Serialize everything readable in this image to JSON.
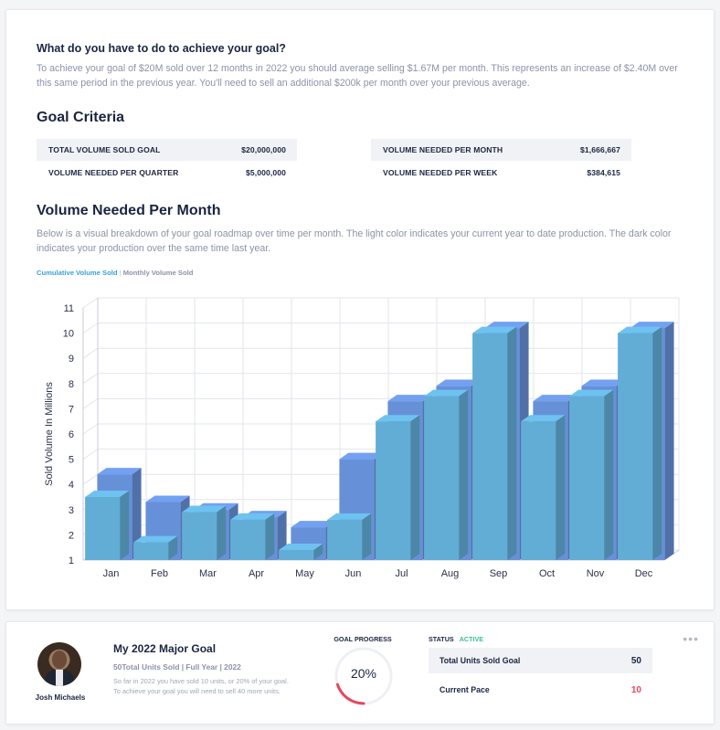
{
  "roadmap": {
    "question": "What do you have to do to achieve your goal?",
    "paragraph": "To achieve your goal of $20M sold over 12 months in 2022 you should average selling $1.67M per month.  This represents an increase of $2.40M over this same period in the previous year.  You'll need to sell an additional $200k per month over your previous average."
  },
  "criteria": {
    "title": "Goal Criteria",
    "left": [
      {
        "label": "TOTAL VOLUME SOLD GOAL",
        "value": "$20,000,000"
      },
      {
        "label": "VOLUME NEEDED PER QUARTER",
        "value": "$5,000,000"
      }
    ],
    "right": [
      {
        "label": "VOLUME NEEDED PER MONTH",
        "value": "$1,666,667"
      },
      {
        "label": "VOLUME NEEDED PER WEEK",
        "value": "$384,615"
      }
    ]
  },
  "volume": {
    "title": "Volume Needed Per Month",
    "paragraph": "Below is a visual breakdown of your goal roadmap over time per month.  The light color indicates your current year to date production.  The dark color indicates your production over the same time last year.",
    "legend": {
      "cumulative": "Cumulative Volume Sold",
      "separator": "|",
      "monthly": "Monthly Volume Sold"
    }
  },
  "chart_data": {
    "type": "bar",
    "ylabel": "Sold Volume In Millions",
    "xlabel": "",
    "ylim": [
      1,
      11
    ],
    "yticks": [
      1,
      2,
      3,
      4,
      5,
      6,
      7,
      8,
      9,
      10,
      11
    ],
    "categories": [
      "Jan",
      "Feb",
      "Mar",
      "Apr",
      "May",
      "Jun",
      "Jul",
      "Aug",
      "Sep",
      "Oct",
      "Nov",
      "Dec"
    ],
    "series": [
      {
        "values": [
          4.4,
          3.3,
          3.0,
          2.7,
          2.3,
          5.0,
          7.3,
          7.9,
          10.2,
          7.3,
          7.9,
          10.2
        ],
        "color": "#6690d8"
      },
      {
        "values": [
          3.5,
          1.7,
          2.9,
          2.6,
          1.4,
          2.6,
          6.5,
          7.5,
          10.0,
          6.5,
          7.5,
          10.0
        ],
        "color": "#62add6"
      }
    ],
    "grid": true,
    "style": "3d"
  },
  "goal": {
    "person_name": "Josh Michaels",
    "title": "My 2022 Major Goal",
    "subtitle": "50Total Units Sold | Full Year | 2022",
    "desc_line1": "So far in 2022 you have sold 10 units, or 20% of your goal.",
    "desc_line2": "To achieve your goal you will need to sell 40 more units.",
    "progress_label": "GOAL PROGRESS",
    "progress_value": "20%",
    "progress_fraction": 0.2,
    "status_label": "STATUS",
    "status_value": "ACTIVE",
    "rows": [
      {
        "label": "Total Units Sold Goal",
        "value": "50"
      },
      {
        "label": "Current Pace",
        "value": "10"
      }
    ],
    "menu": "•••"
  },
  "colors": {
    "accent": "#3aa0d8",
    "active": "#3cc08f",
    "alert": "#e8465c",
    "bar_dark": "#6690d8",
    "bar_light": "#62add6"
  }
}
